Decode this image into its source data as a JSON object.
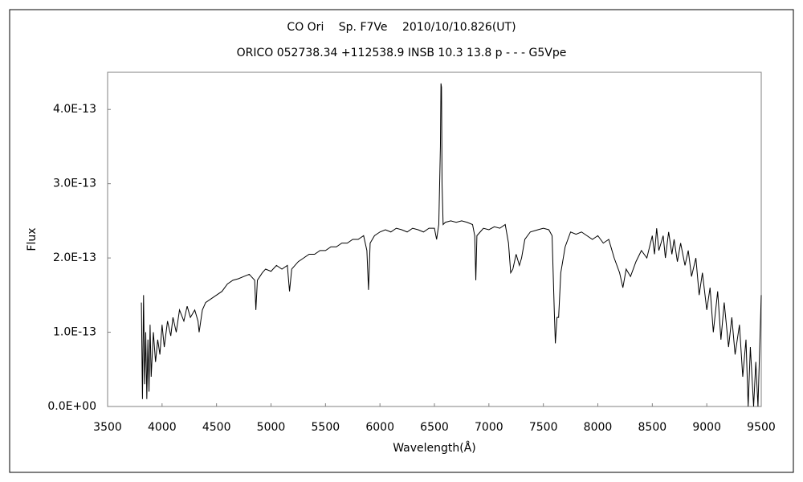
{
  "chart_data": {
    "type": "line",
    "title": "CO Ori　 Sp. F7Ve　 2010/10/10.826(UT)",
    "subtitle": "ORICO 052738.34 +112538.9 INSB 10.3 13.8 p - - - G5Vpe",
    "xlabel": "Wavelength(Å)",
    "ylabel": "Flux",
    "xlim": [
      3500,
      9500
    ],
    "xticks": [
      3500,
      4000,
      4500,
      5000,
      5500,
      6000,
      6500,
      7000,
      7500,
      8000,
      8500,
      9000,
      9500
    ],
    "ylim": [
      0,
      4.5e-13
    ],
    "yticks": [
      {
        "value": 0,
        "label": "0.0E+00"
      },
      {
        "value": 1e-13,
        "label": "1.0E-13"
      },
      {
        "value": 2e-13,
        "label": "2.0E-13"
      },
      {
        "value": 3e-13,
        "label": "3.0E-13"
      },
      {
        "value": 4e-13,
        "label": "4.0E-13"
      }
    ],
    "color": "#000000",
    "x": [
      3810,
      3820,
      3830,
      3840,
      3850,
      3860,
      3870,
      3880,
      3890,
      3900,
      3920,
      3940,
      3960,
      3980,
      4000,
      4020,
      4050,
      4080,
      4100,
      4130,
      4160,
      4200,
      4230,
      4260,
      4300,
      4330,
      4340,
      4370,
      4400,
      4450,
      4500,
      4550,
      4600,
      4650,
      4700,
      4750,
      4800,
      4850,
      4861,
      4875,
      4920,
      4950,
      5000,
      5050,
      5100,
      5150,
      5170,
      5190,
      5250,
      5300,
      5350,
      5400,
      5450,
      5500,
      5550,
      5600,
      5650,
      5700,
      5750,
      5800,
      5850,
      5880,
      5895,
      5910,
      5950,
      6000,
      6050,
      6100,
      6150,
      6200,
      6250,
      6300,
      6350,
      6400,
      6450,
      6500,
      6520,
      6540,
      6555,
      6560,
      6565,
      6570,
      6580,
      6600,
      6650,
      6700,
      6750,
      6800,
      6850,
      6870,
      6880,
      6890,
      6920,
      6950,
      7000,
      7050,
      7100,
      7150,
      7180,
      7200,
      7220,
      7250,
      7280,
      7300,
      7330,
      7380,
      7450,
      7500,
      7550,
      7580,
      7600,
      7610,
      7625,
      7640,
      7660,
      7700,
      7750,
      7800,
      7850,
      7900,
      7950,
      8000,
      8050,
      8100,
      8150,
      8200,
      8230,
      8260,
      8300,
      8350,
      8400,
      8450,
      8500,
      8520,
      8540,
      8560,
      8600,
      8620,
      8650,
      8680,
      8700,
      8730,
      8760,
      8800,
      8830,
      8860,
      8900,
      8930,
      8960,
      9000,
      9030,
      9060,
      9100,
      9130,
      9160,
      9200,
      9230,
      9260,
      9300,
      9330,
      9360,
      9380,
      9400,
      9430,
      9450,
      9470,
      9500
    ],
    "values": [
      1.4e-13,
      1e-14,
      1.5e-13,
      3e-14,
      1e-13,
      1e-14,
      9e-14,
      2e-14,
      1.1e-13,
      4e-14,
      1e-13,
      6e-14,
      9e-14,
      7e-14,
      1.1e-13,
      8e-14,
      1.15e-13,
      9.5e-14,
      1.2e-13,
      1e-13,
      1.3e-13,
      1.15e-13,
      1.35e-13,
      1.2e-13,
      1.3e-13,
      1.15e-13,
      1e-13,
      1.3e-13,
      1.4e-13,
      1.45e-13,
      1.5e-13,
      1.55e-13,
      1.65e-13,
      1.7e-13,
      1.72e-13,
      1.75e-13,
      1.78e-13,
      1.7e-13,
      1.3e-13,
      1.7e-13,
      1.8e-13,
      1.85e-13,
      1.82e-13,
      1.9e-13,
      1.85e-13,
      1.9e-13,
      1.55e-13,
      1.85e-13,
      1.95e-13,
      2e-13,
      2.05e-13,
      2.05e-13,
      2.1e-13,
      2.1e-13,
      2.15e-13,
      2.15e-13,
      2.2e-13,
      2.2e-13,
      2.25e-13,
      2.25e-13,
      2.3e-13,
      2.1e-13,
      1.57e-13,
      2.2e-13,
      2.3e-13,
      2.35e-13,
      2.38e-13,
      2.35e-13,
      2.4e-13,
      2.38e-13,
      2.35e-13,
      2.4e-13,
      2.38e-13,
      2.35e-13,
      2.4e-13,
      2.4e-13,
      2.25e-13,
      2.45e-13,
      3.5e-13,
      4.35e-13,
      4.3e-13,
      3e-13,
      2.45e-13,
      2.48e-13,
      2.5e-13,
      2.48e-13,
      2.5e-13,
      2.48e-13,
      2.45e-13,
      2.3e-13,
      1.7e-13,
      2.3e-13,
      2.35e-13,
      2.4e-13,
      2.38e-13,
      2.42e-13,
      2.4e-13,
      2.45e-13,
      2.2e-13,
      1.8e-13,
      1.85e-13,
      2.05e-13,
      1.9e-13,
      2e-13,
      2.25e-13,
      2.35e-13,
      2.38e-13,
      2.4e-13,
      2.38e-13,
      2.3e-13,
      1.3e-13,
      8.5e-14,
      1.2e-13,
      1.2e-13,
      1.8e-13,
      2.15e-13,
      2.35e-13,
      2.32e-13,
      2.35e-13,
      2.3e-13,
      2.25e-13,
      2.3e-13,
      2.2e-13,
      2.25e-13,
      2e-13,
      1.8e-13,
      1.6e-13,
      1.85e-13,
      1.75e-13,
      1.95e-13,
      2.1e-13,
      2e-13,
      2.3e-13,
      2.05e-13,
      2.4e-13,
      2.1e-13,
      2.3e-13,
      2e-13,
      2.35e-13,
      2.05e-13,
      2.25e-13,
      1.95e-13,
      2.2e-13,
      1.9e-13,
      2.1e-13,
      1.75e-13,
      2e-13,
      1.5e-13,
      1.8e-13,
      1.3e-13,
      1.6e-13,
      1e-13,
      1.55e-13,
      9e-14,
      1.4e-13,
      8e-14,
      1.2e-13,
      7e-14,
      1.1e-13,
      4e-14,
      9e-14,
      0,
      8e-14,
      0,
      6e-14,
      0,
      1.5e-13
    ]
  }
}
